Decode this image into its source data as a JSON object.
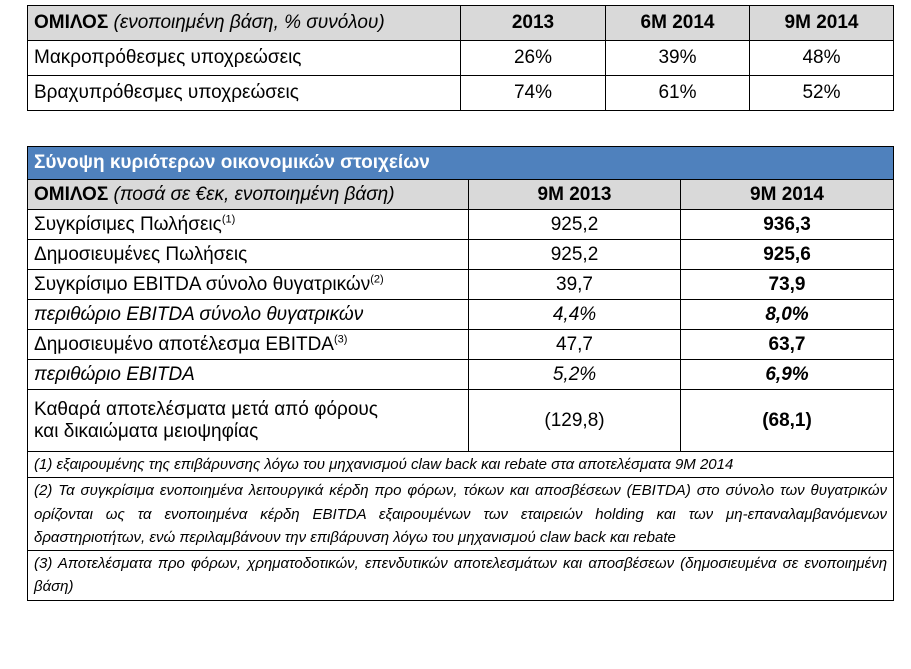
{
  "table1": {
    "header": {
      "label_bold": "ΟΜΙΛΟΣ",
      "label_sub": "(ενοποιημένη βάση, % συνόλου)",
      "cols": [
        "2013",
        "6Μ 2014",
        "9Μ 2014"
      ]
    },
    "rows": [
      {
        "label": "Μακροπρόθεσμες υποχρεώσεις",
        "values": [
          "26%",
          "39%",
          "48%"
        ]
      },
      {
        "label": "Βραχυπρόθεσμες υποχρεώσεις",
        "values": [
          "74%",
          "61%",
          "52%"
        ]
      }
    ]
  },
  "table2": {
    "title": "Σύνοψη κυριότερων οικονομικών στοιχείων",
    "header": {
      "label_bold": "ΟΜΙΛΟΣ",
      "label_sub": "(ποσά σε €εκ, ενοποιημένη βάση)",
      "cols": [
        "9Μ 2013",
        "9Μ 2014"
      ]
    },
    "rows": [
      {
        "label": "Συγκρίσιμες Πωλήσεις",
        "sup": "(1)",
        "v1": "925,2",
        "v2": "936,3"
      },
      {
        "label": "Δημοσιευμένες Πωλήσεις",
        "sup": "",
        "v1": "925,2",
        "v2": "925,6"
      },
      {
        "label": "Συγκρίσιμο EBITDA σύνολο θυγατρικών",
        "sup": "(2)",
        "v1": "39,7",
        "v2": "73,9"
      },
      {
        "label": "περιθώριο EBITDA σύνολο θυγατρικών",
        "sup": "",
        "v1": "4,4%",
        "v2": "8,0%"
      },
      {
        "label": "Δημοσιευμένο αποτέλεσμα EBITDA",
        "sup": "(3)",
        "v1": "47,7",
        "v2": "63,7"
      },
      {
        "label": "περιθώριο EBITDA",
        "sup": "",
        "v1": "5,2%",
        "v2": "6,9%"
      },
      {
        "label_line1": "Καθαρά αποτελέσματα μετά από φόρους",
        "label_line2": "και δικαιώματα μειοψηφίας",
        "v1": "(129,8)",
        "v2": "(68,1)"
      }
    ],
    "notes": [
      "(1) εξαιρουμένης της επιβάρυνσης λόγω του μηχανισμού claw back και rebate στα αποτελέσματα 9Μ 2014",
      "(2) Τα συγκρίσιμα ενοποιημένα λειτουργικά κέρδη προ φόρων, τόκων και αποσβέσεων (EBITDA) στο σύνολο των θυγατρικών ορίζονται ως τα ενοποιημένα κέρδη EBITDA εξαιρουμένων των εταιρειών holding και των μη-επαναλαμβανόμενων δραστηριοτήτων, ενώ περιλαμβάνουν την επιβάρυνση λόγω του μηχανισμού claw back και rebate",
      "(3) Αποτελέσματα προ φόρων, χρηματοδοτικών, επενδυτικών αποτελεσμάτων και αποσβέσεων (δημοσιευμένα σε ενοποιημένη βάση)"
    ]
  }
}
